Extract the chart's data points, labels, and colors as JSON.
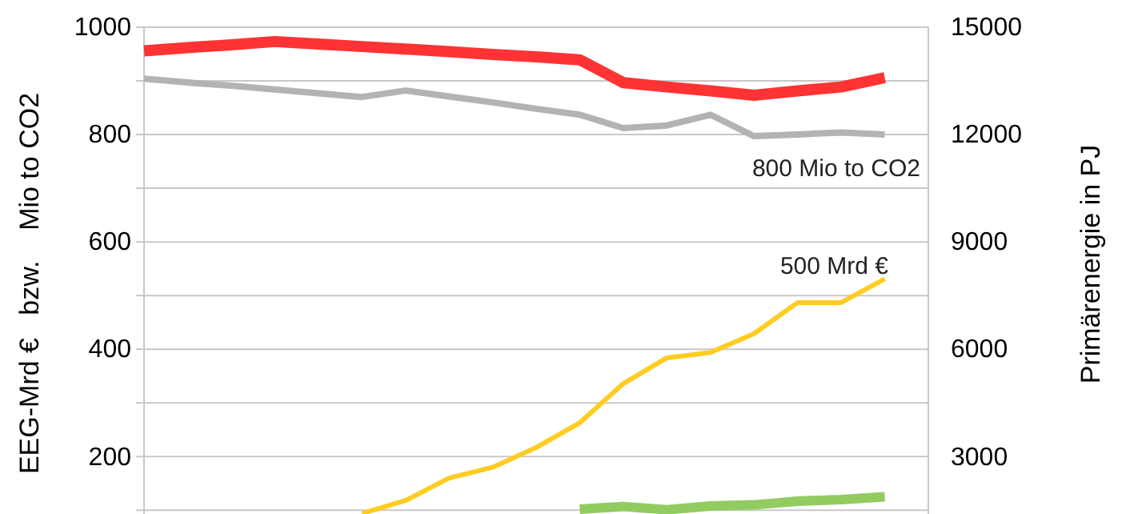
{
  "chart_data": {
    "type": "line",
    "ylabel": "EEG-Mrd €   bzw.    Mio to CO2",
    "y2label": "Primärenergie in PJ",
    "categories": [
      null,
      null,
      null,
      null,
      null,
      null,
      null,
      null,
      null,
      null,
      null,
      null,
      null,
      null,
      null,
      null,
      null,
      null,
      null
    ],
    "series": [
      {
        "color": "#ff3333",
        "axis": "y2",
        "values": [
          14340,
          14430,
          14510,
          14600,
          14530,
          14460,
          14390,
          14320,
          14240,
          14170,
          14090,
          13450,
          13330,
          13220,
          13100,
          13220,
          13330,
          13590,
          null
        ]
      },
      {
        "color": "#b3b3b3",
        "values": [
          904,
          897,
          891,
          884,
          877,
          870,
          882,
          871,
          860,
          848,
          837,
          812,
          817,
          837,
          797,
          800,
          804,
          800,
          null
        ]
      },
      {
        "color": "#ffcc22",
        "values": [
          null,
          null,
          null,
          null,
          null,
          94,
          118,
          160,
          180,
          217,
          263,
          336,
          384,
          394,
          429,
          487,
          487,
          531,
          null
        ]
      },
      {
        "color": "#92cc60",
        "values": [
          null,
          null,
          null,
          null,
          null,
          null,
          null,
          null,
          null,
          null,
          102,
          107,
          101,
          108,
          110,
          117,
          120,
          125,
          null
        ]
      }
    ],
    "ylim": [
      93,
      1000
    ],
    "yticks": [
      {
        "value": 100,
        "label": null
      },
      200,
      {
        "value": 300,
        "label": null
      },
      400,
      {
        "value": 500,
        "label": null
      },
      600,
      {
        "value": 700,
        "label": null
      },
      800,
      {
        "value": 900,
        "label": null
      },
      1000
    ],
    "y2lim": [
      1395,
      15000
    ],
    "y2ticks": [
      3000,
      6000,
      9000,
      12000,
      15000
    ],
    "grid": "y",
    "marker": "none",
    "line_style": "solid",
    "annotations": [
      "800 Mio to CO2",
      "500 Mrd €"
    ]
  }
}
